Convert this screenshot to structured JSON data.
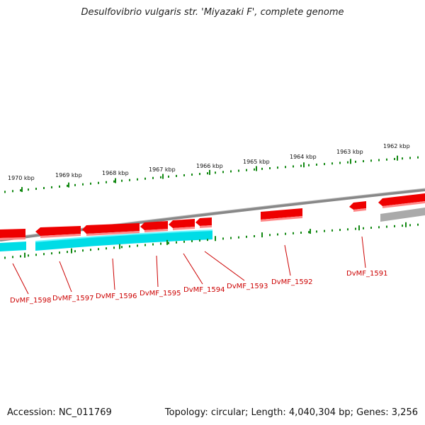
{
  "title": "Desulfovibrio vulgaris str. 'Miyazaki F', complete genome",
  "footer": {
    "accession": "Accession: NC_011769",
    "stats": "Topology: circular; Length: 4,040,304 bp; Genes: 3,256"
  },
  "colors": {
    "gene_forward": "#ee0000",
    "gene_reverse_band": "#00e5ee",
    "backbone": "#888888",
    "ticks": "#118811",
    "label": "#cc0000"
  },
  "scale_ticks": [
    "1970 kbp",
    "1969 kbp",
    "1968 kbp",
    "1967 kbp",
    "1966 kbp",
    "1965 kbp",
    "1964 kbp",
    "1963 kbp",
    "1962 kbp"
  ],
  "genes": [
    "DvMF_1598",
    "DvMF_1597",
    "DvMF_1596",
    "DvMF_1595",
    "DvMF_1594",
    "DvMF_1593",
    "DvMF_1592",
    "DvMF_1591"
  ]
}
